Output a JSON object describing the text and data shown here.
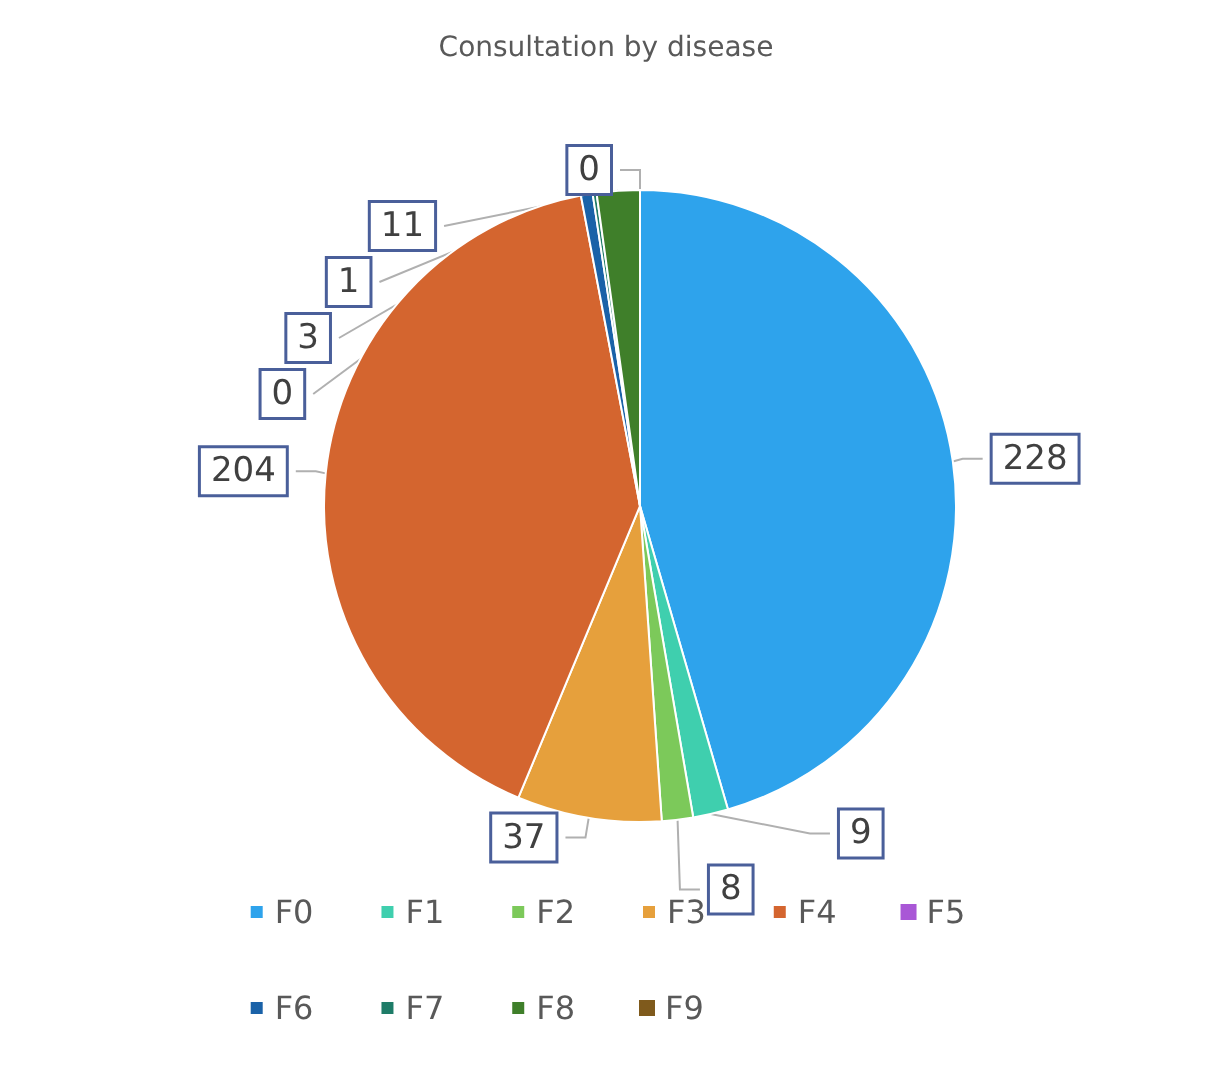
{
  "chart_data": {
    "type": "pie",
    "title": "Consultation by disease",
    "categories": [
      "F0",
      "F1",
      "F2",
      "F3",
      "F4",
      "F5",
      "F6",
      "F7",
      "F8",
      "F9"
    ],
    "values": [
      228,
      9,
      8,
      37,
      204,
      0,
      3,
      1,
      11,
      0
    ],
    "colors": [
      "#2ea3ec",
      "#3fcfae",
      "#7cc95a",
      "#e6a03c",
      "#d4652f",
      "#a957d6",
      "#1a62a8",
      "#1e7c68",
      "#3f7f2a",
      "#7f5a1c"
    ],
    "value_labels": [
      "228",
      "9",
      "8",
      "37",
      "204",
      "0",
      "3",
      "1",
      "11",
      "0"
    ],
    "data_labels": true,
    "legend": "bottom"
  }
}
